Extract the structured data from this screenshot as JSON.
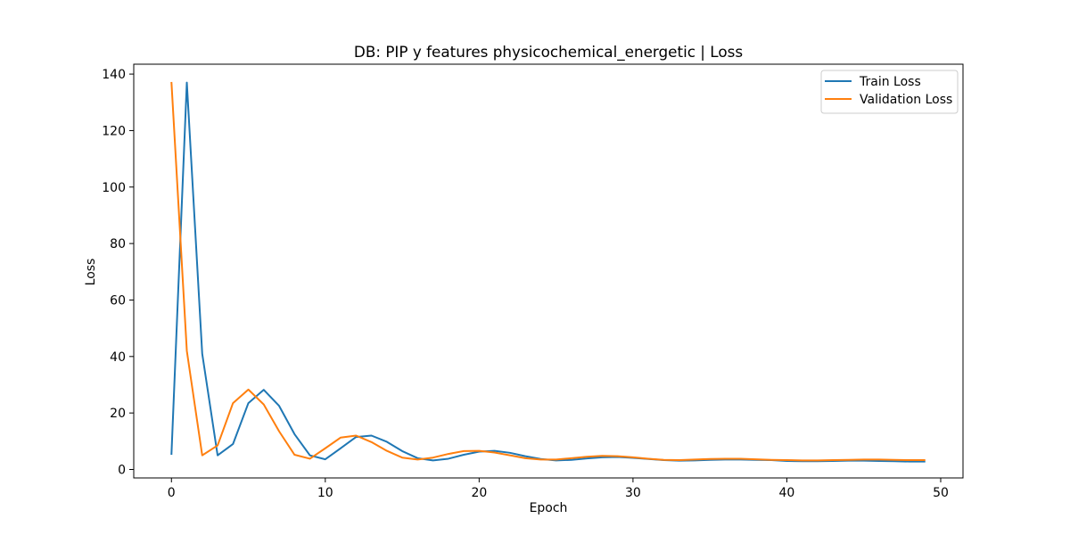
{
  "chart_data": {
    "type": "line",
    "title": "DB: PIP y features physicochemical_energetic | Loss",
    "xlabel": "Epoch",
    "ylabel": "Loss",
    "xlim": [
      -2.45,
      51.45
    ],
    "ylim": [
      -3.0,
      143.5
    ],
    "xticks": [
      0,
      10,
      20,
      30,
      40,
      50
    ],
    "yticks": [
      0,
      20,
      40,
      60,
      80,
      100,
      120,
      140
    ],
    "grid": false,
    "legend_position": "top-right",
    "x": [
      0,
      1,
      2,
      3,
      4,
      5,
      6,
      7,
      8,
      9,
      10,
      11,
      12,
      13,
      14,
      15,
      16,
      17,
      18,
      19,
      20,
      21,
      22,
      23,
      24,
      25,
      26,
      27,
      28,
      29,
      30,
      31,
      32,
      33,
      34,
      35,
      36,
      37,
      38,
      39,
      40,
      41,
      42,
      43,
      44,
      45,
      46,
      47,
      48,
      49
    ],
    "series": [
      {
        "name": "Train Loss",
        "color": "#1f77b4",
        "values": [
          5.2,
          137.0,
          41.0,
          5.0,
          9.0,
          23.5,
          28.2,
          22.5,
          12.5,
          5.0,
          3.6,
          7.5,
          11.5,
          12.0,
          9.8,
          6.5,
          4.0,
          3.2,
          3.8,
          5.2,
          6.3,
          6.6,
          5.9,
          4.7,
          3.7,
          3.2,
          3.4,
          3.9,
          4.3,
          4.4,
          4.1,
          3.7,
          3.3,
          3.1,
          3.2,
          3.4,
          3.5,
          3.5,
          3.4,
          3.3,
          3.0,
          2.9,
          2.9,
          3.0,
          3.1,
          3.1,
          3.0,
          2.9,
          2.8,
          2.8
        ]
      },
      {
        "name": "Validation Loss",
        "color": "#ff7f0e",
        "values": [
          137.2,
          42.0,
          5.0,
          8.5,
          23.5,
          28.3,
          23.0,
          13.5,
          5.2,
          3.8,
          7.5,
          11.3,
          12.0,
          9.7,
          6.6,
          4.2,
          3.5,
          4.2,
          5.5,
          6.5,
          6.6,
          6.0,
          5.0,
          4.0,
          3.5,
          3.5,
          4.0,
          4.5,
          4.8,
          4.7,
          4.3,
          3.8,
          3.4,
          3.3,
          3.5,
          3.7,
          3.8,
          3.8,
          3.6,
          3.4,
          3.3,
          3.2,
          3.2,
          3.3,
          3.4,
          3.5,
          3.5,
          3.4,
          3.3,
          3.3
        ]
      }
    ]
  }
}
